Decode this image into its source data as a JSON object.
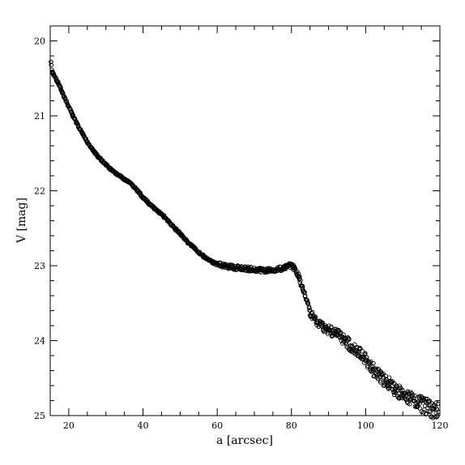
{
  "chart_data": {
    "type": "scatter",
    "title": "",
    "xlabel": "a [arcsec]",
    "ylabel": "V [mag]",
    "xlim": [
      15,
      120
    ],
    "ylim": [
      25,
      19.8
    ],
    "y_inverted": true,
    "x_ticks": [
      20,
      40,
      60,
      80,
      100,
      120
    ],
    "y_ticks": [
      20,
      21,
      22,
      23,
      24,
      25
    ],
    "marker": "open-circle",
    "color": "#000000",
    "grid": false,
    "series": [
      {
        "x": [
          15.2,
          15.5,
          16.0,
          16.5,
          17.0,
          18.0,
          19.0,
          20.0,
          21.0,
          22.0,
          23.0,
          24.0,
          25.0,
          26.0,
          27.0,
          28.0,
          29.0,
          30.0,
          31.0,
          32.0,
          33.0,
          34.0,
          35.0,
          36.0,
          37.0,
          38.0,
          39.0,
          40.0,
          41.0,
          42.0,
          43.0,
          44.0,
          45.0,
          46.0,
          47.0,
          48.0,
          49.0,
          50.0,
          51.0,
          52.0,
          53.0,
          54.0,
          55.0,
          56.0,
          57.0,
          58.0,
          59.0,
          60.0,
          62.0,
          64.0,
          66.0,
          68.0,
          70.0,
          72.0,
          74.0,
          76.0,
          78.0,
          79.0,
          80.0,
          81.0,
          82.0,
          83.0,
          84.0,
          85.0,
          86.0,
          87.0,
          88.0,
          90.0,
          92.0,
          94.0,
          96.0,
          98.0,
          100.0,
          102.0,
          104.0,
          106.0,
          108.0,
          110.0,
          112.0,
          114.0,
          116.0,
          118.0,
          119.5
        ],
        "y": [
          20.28,
          20.42,
          20.45,
          20.5,
          20.55,
          20.66,
          20.77,
          20.88,
          20.99,
          21.08,
          21.18,
          21.27,
          21.35,
          21.42,
          21.49,
          21.55,
          21.6,
          21.65,
          21.7,
          21.74,
          21.78,
          21.81,
          21.85,
          21.88,
          21.92,
          21.97,
          22.03,
          22.09,
          22.14,
          22.19,
          22.23,
          22.27,
          22.31,
          22.36,
          22.42,
          22.47,
          22.52,
          22.57,
          22.63,
          22.68,
          22.73,
          22.77,
          22.82,
          22.86,
          22.9,
          22.93,
          22.96,
          22.98,
          23.0,
          23.02,
          23.03,
          23.04,
          23.05,
          23.06,
          23.06,
          23.05,
          23.03,
          23.01,
          22.99,
          23.05,
          23.15,
          23.3,
          23.45,
          23.6,
          23.7,
          23.76,
          23.8,
          23.85,
          23.9,
          23.97,
          24.07,
          24.15,
          24.25,
          24.38,
          24.48,
          24.57,
          24.65,
          24.72,
          24.78,
          24.83,
          24.87,
          24.92,
          24.95
        ]
      }
    ]
  }
}
